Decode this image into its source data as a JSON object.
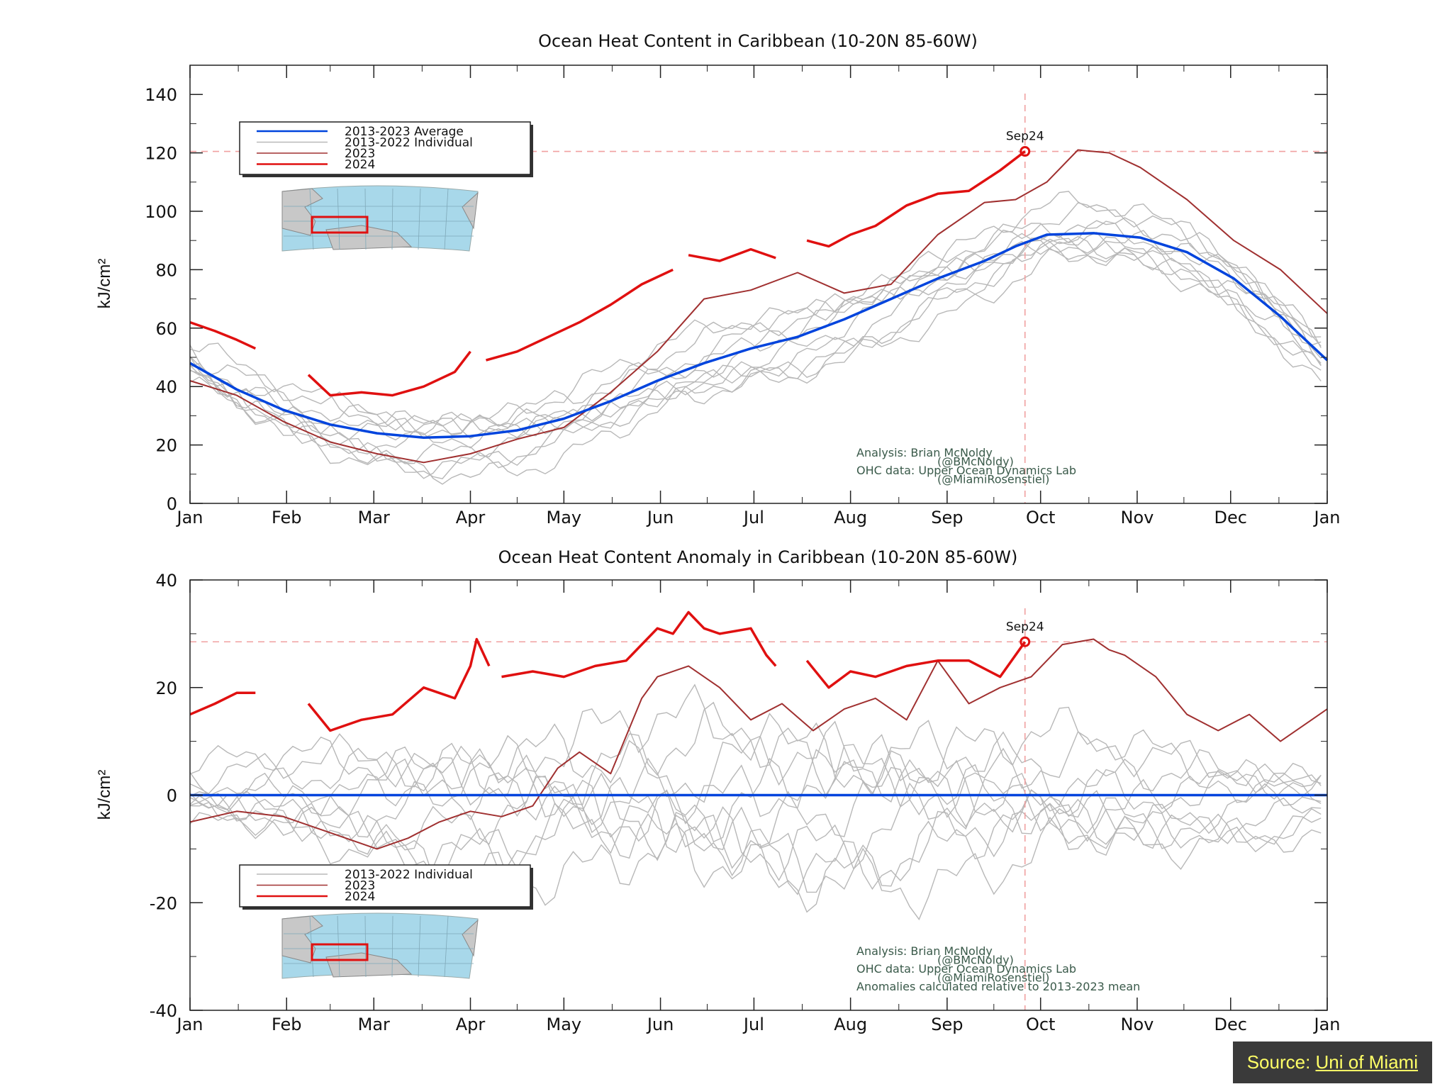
{
  "source": {
    "label": "Source: ",
    "link": "Uni of Miami"
  },
  "chart_data": [
    {
      "type": "line",
      "title": "Ocean Heat Content in Caribbean (10-20N 85-60W)",
      "ylabel": "kJ/cm²",
      "xlabel": "",
      "x_unit": "day of year",
      "ylim": [
        0,
        150
      ],
      "yticks": [
        0,
        20,
        40,
        60,
        80,
        100,
        120,
        140
      ],
      "months": [
        "Jan",
        "Feb",
        "Mar",
        "Apr",
        "May",
        "Jun",
        "Jul",
        "Aug",
        "Sep",
        "Oct",
        "Nov",
        "Dec",
        "Jan"
      ],
      "marker": {
        "label": "Sep24",
        "x": 268,
        "y": 120.5
      },
      "legend": {
        "placement": "top-left",
        "entries": [
          "2013-2023 Average",
          "2013-2022 Individual",
          "2023",
          "2024"
        ]
      },
      "credits": [
        "Analysis: Brian McNoldy",
        "(@BMcNoldy)",
        "OHC data: Upper Ocean Dynamics Lab",
        "(@MiamiRosenstiel)"
      ],
      "colors": {
        "average": "#0044dd",
        "individual": "#b8b8b8",
        "y2023": "#a03030",
        "y2024": "#e01010"
      },
      "series": [
        {
          "name": "2013-2023 Average",
          "x": [
            0,
            15,
            30,
            45,
            60,
            75,
            90,
            105,
            120,
            135,
            150,
            165,
            180,
            195,
            210,
            225,
            240,
            255,
            265,
            275,
            290,
            305,
            320,
            335,
            350,
            365
          ],
          "y": [
            48,
            39,
            32,
            27,
            24,
            22.5,
            23,
            25,
            29,
            35,
            42,
            48,
            53,
            57,
            63,
            70,
            77,
            83,
            88,
            92,
            92.5,
            91,
            86,
            77,
            64,
            49
          ]
        },
        {
          "name": "2023",
          "x": [
            0,
            15,
            30,
            45,
            60,
            75,
            90,
            105,
            120,
            135,
            150,
            165,
            180,
            195,
            210,
            225,
            240,
            255,
            265,
            275,
            285,
            295,
            305,
            320,
            335,
            350,
            365
          ],
          "y": [
            42,
            37,
            28,
            21,
            17,
            14,
            17,
            22,
            26,
            38,
            52,
            70,
            73,
            79,
            72,
            75,
            92,
            103,
            104,
            110,
            121,
            120,
            115,
            104,
            90,
            80,
            65
          ]
        },
        {
          "name": "2024",
          "segments": [
            {
              "x": [
                0,
                8,
                15,
                21
              ],
              "y": [
                62,
                59,
                56,
                53
              ]
            },
            {
              "x": [
                38,
                45,
                55,
                65,
                75,
                85,
                90
              ],
              "y": [
                44,
                37,
                38,
                37,
                40,
                45,
                52
              ]
            },
            {
              "x": [
                95,
                105,
                115,
                125,
                135,
                145,
                155
              ],
              "y": [
                49,
                52,
                57,
                62,
                68,
                75,
                80
              ]
            },
            {
              "x": [
                160,
                170,
                180,
                188
              ],
              "y": [
                85,
                83,
                87,
                84
              ]
            },
            {
              "x": [
                198,
                205,
                212,
                220,
                230,
                240,
                250,
                260,
                268
              ],
              "y": [
                90,
                88,
                92,
                95,
                102,
                106,
                107,
                114,
                120.5
              ]
            }
          ]
        },
        {
          "name": "2013-2022 Individual",
          "individual": true,
          "offsets": [
            -12,
            -8,
            -5,
            -3,
            0,
            3,
            6,
            9,
            -10,
            4
          ]
        }
      ]
    },
    {
      "type": "line",
      "title": "Ocean Heat Content Anomaly in Caribbean (10-20N 85-60W)",
      "ylabel": "kJ/cm²",
      "xlabel": "",
      "x_unit": "day of year",
      "ylim": [
        -40,
        40
      ],
      "yticks": [
        -40,
        -20,
        0,
        20,
        40
      ],
      "months": [
        "Jan",
        "Feb",
        "Mar",
        "Apr",
        "May",
        "Jun",
        "Jul",
        "Aug",
        "Sep",
        "Oct",
        "Nov",
        "Dec",
        "Jan"
      ],
      "marker": {
        "label": "Sep24",
        "x": 268,
        "y": 28.5
      },
      "legend": {
        "placement": "bottom-left",
        "entries": [
          "2013-2022 Individual",
          "2023",
          "2024"
        ]
      },
      "credits": [
        "Analysis: Brian McNoldy",
        "(@BMcNoldy)",
        "OHC data: Upper Ocean Dynamics Lab",
        "(@MiamiRosenstiel)",
        "Anomalies calculated relative to 2013-2023 mean"
      ],
      "colors": {
        "average": "#0044dd",
        "individual": "#b8b8b8",
        "y2023": "#a03030",
        "y2024": "#e01010"
      },
      "series": [
        {
          "name": "2013-2023 Average",
          "x": [
            0,
            365
          ],
          "y": [
            0,
            0
          ]
        },
        {
          "name": "2023",
          "x": [
            0,
            15,
            30,
            45,
            55,
            60,
            70,
            80,
            90,
            100,
            110,
            118,
            125,
            135,
            145,
            150,
            160,
            170,
            180,
            190,
            200,
            210,
            220,
            230,
            240,
            250,
            260,
            270,
            280,
            290,
            295,
            300,
            310,
            320,
            330,
            340,
            350,
            365
          ],
          "y": [
            -5,
            -3,
            -4,
            -7,
            -9,
            -10,
            -8,
            -5,
            -3,
            -4,
            -2,
            5,
            8,
            4,
            18,
            22,
            24,
            20,
            14,
            17,
            12,
            16,
            18,
            14,
            25,
            17,
            20,
            22,
            28,
            29,
            27,
            26,
            22,
            15,
            12,
            15,
            10,
            16
          ]
        },
        {
          "name": "2024",
          "segments": [
            {
              "x": [
                0,
                8,
                15,
                21
              ],
              "y": [
                15,
                17,
                19,
                19
              ]
            },
            {
              "x": [
                38,
                45,
                55,
                65,
                75,
                85,
                90,
                92,
                96
              ],
              "y": [
                17,
                12,
                14,
                15,
                20,
                18,
                24,
                29,
                24
              ]
            },
            {
              "x": [
                100,
                110,
                120,
                130,
                140,
                150,
                155,
                160,
                165,
                170,
                180,
                185,
                188
              ],
              "y": [
                22,
                23,
                22,
                24,
                25,
                31,
                30,
                34,
                31,
                30,
                31,
                26,
                24
              ]
            },
            {
              "x": [
                198,
                205,
                212,
                220,
                230,
                240,
                250,
                260,
                268
              ],
              "y": [
                25,
                20,
                23,
                22,
                24,
                25,
                25,
                22,
                28.5
              ]
            }
          ]
        },
        {
          "name": "2013-2022 Individual",
          "individual": true,
          "offsets": [
            -12,
            -8,
            -5,
            -3,
            0,
            3,
            6,
            9,
            -10,
            4
          ]
        }
      ]
    }
  ]
}
